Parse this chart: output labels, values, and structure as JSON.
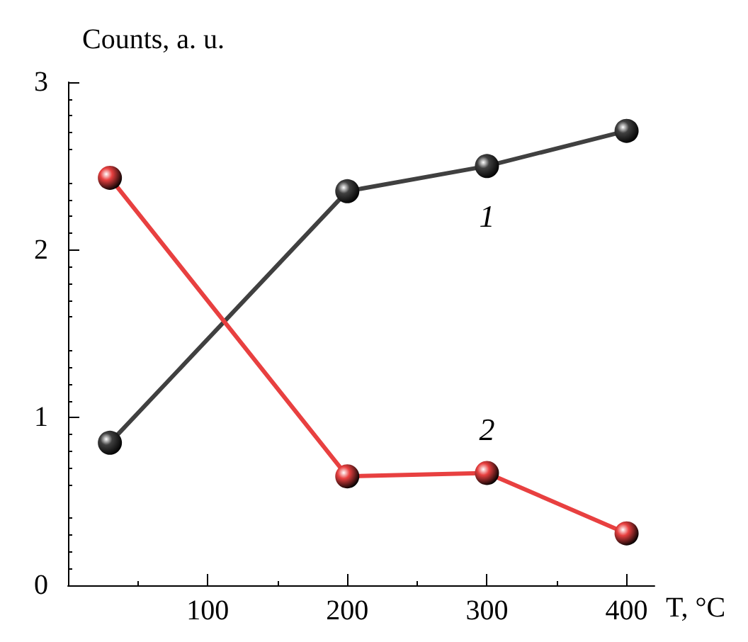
{
  "chart_data": {
    "type": "line",
    "ylabel": "Counts, a. u.",
    "xlabel": "T, °C",
    "x": [
      30,
      200,
      300,
      400
    ],
    "series": [
      {
        "name": "1",
        "color": "#404040",
        "values": [
          0.85,
          2.35,
          2.5,
          2.71
        ]
      },
      {
        "name": "2",
        "color": "#e84040",
        "values": [
          2.43,
          0.65,
          0.67,
          0.31
        ]
      }
    ],
    "xlim": [
      0,
      420
    ],
    "xticks": [
      100,
      200,
      300,
      400
    ],
    "ylim": [
      0,
      3
    ],
    "yticks": [
      0,
      1,
      2,
      3
    ],
    "marker": "circle",
    "line_style": "solid",
    "grid": false,
    "legend": false
  }
}
